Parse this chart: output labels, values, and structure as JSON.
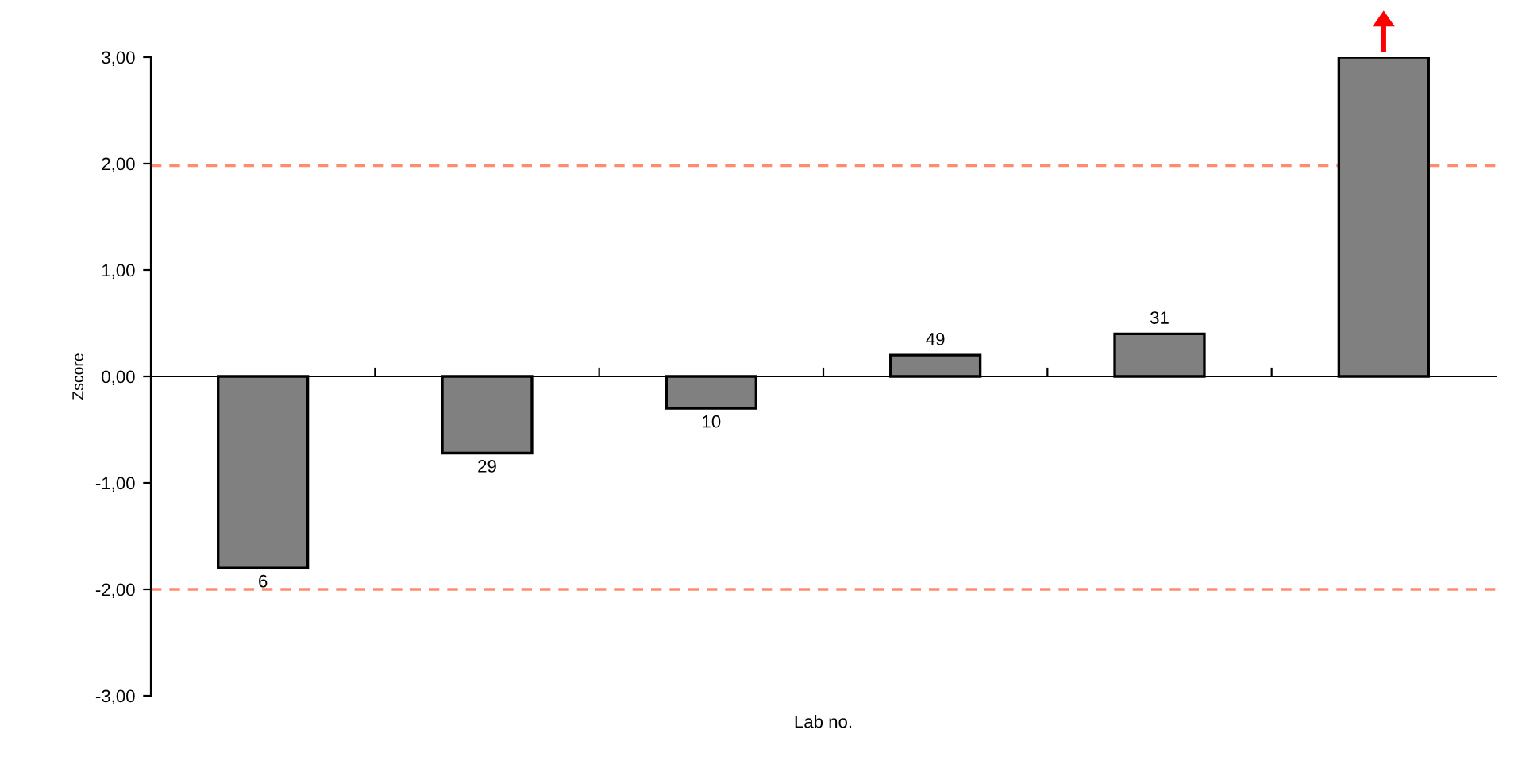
{
  "chart_data": {
    "type": "bar",
    "xlabel": "Lab no.",
    "ylabel": "Zscore",
    "categories": [
      "6",
      "29",
      "10",
      "49",
      "31",
      null
    ],
    "values": [
      -1.8,
      -0.72,
      -0.3,
      0.2,
      0.4,
      3.0
    ],
    "color": "#808080",
    "ylim": [
      -3,
      3
    ],
    "yticks": [
      {
        "value": -3,
        "label": "-3,00"
      },
      {
        "value": -2,
        "label": "-2,00"
      },
      {
        "value": -1,
        "label": "-1,00"
      },
      {
        "value": 0,
        "label": "0,00"
      },
      {
        "value": 1,
        "label": "1,00"
      },
      {
        "value": 2,
        "label": "2,00"
      },
      {
        "value": 3,
        "label": "3,00"
      }
    ],
    "ref_lines": [
      {
        "axis": "y",
        "value": 1.98,
        "color": "#ff8c70",
        "line_style": "dashed"
      },
      {
        "axis": "y",
        "value": -2.0,
        "color": "#ff8c70",
        "line_style": "dashed"
      }
    ],
    "grid": false,
    "legend": false
  }
}
